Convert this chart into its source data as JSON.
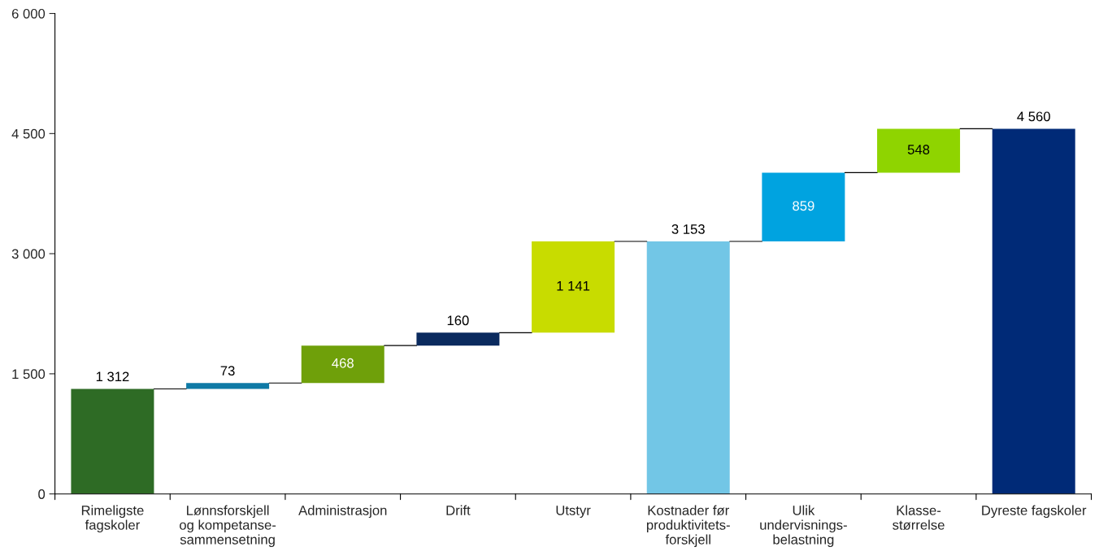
{
  "chart_data": {
    "type": "bar",
    "categories": [
      "Rimeligste\nfagskoler",
      "Lønnsforskjell\nog kompetanse-\nsammensetning",
      "Administrasjon",
      "Drift",
      "Utstyr",
      "Kostnader før\nproduktivitets-\nforskjell",
      "Ulik\nundervisnings-\nbelastning",
      "Klasse-\nstørrelse",
      "Dyreste fagskoler"
    ],
    "values": [
      1312,
      73,
      468,
      160,
      1141,
      3153,
      859,
      548,
      4560
    ],
    "base": [
      0,
      1312,
      1385,
      1853,
      2013,
      0,
      3153,
      4012,
      0
    ],
    "colors": [
      "#2e6b25",
      "#0f7aa6",
      "#6fa00a",
      "#0a2a5e",
      "#c8dc00",
      "#72c6e6",
      "#00a3e0",
      "#8fd400",
      "#002a77"
    ],
    "value_labels": [
      "1 312",
      "73",
      "468",
      "160",
      "1 141",
      "3 153",
      "859",
      "548",
      "4 560"
    ],
    "ylim": [
      0,
      6000
    ],
    "yticks": [
      0,
      {
        "value": 1500,
        "label": "1 500"
      },
      {
        "value": 3000,
        "label": "3 000"
      },
      {
        "value": 4500,
        "label": "4 500"
      },
      {
        "value": 6000,
        "label": "6 000"
      }
    ],
    "grid": false
  }
}
